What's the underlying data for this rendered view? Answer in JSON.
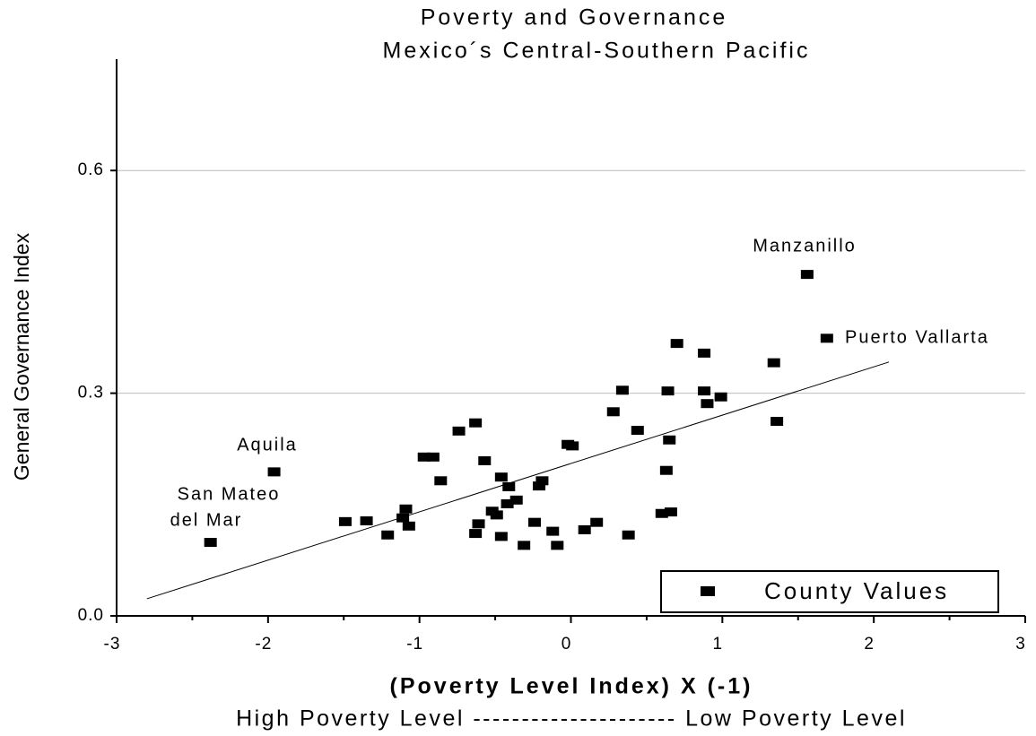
{
  "chart_data": {
    "type": "scatter",
    "title": "Poverty and Governance",
    "subtitle": "Mexico´s Central-Southern Pacific",
    "xlabel": "(Poverty Level Index) X (-1)",
    "xlabel_note": "High Poverty Level --------------------- Low Poverty Level",
    "ylabel": "General Governance Index",
    "xlim": [
      -3,
      3
    ],
    "ylim": [
      0,
      0.75
    ],
    "xticks": [
      -3,
      -2,
      -1,
      0,
      1,
      2,
      3
    ],
    "yticks": [
      {
        "value": 0,
        "label": "0.0"
      },
      0.3,
      0.6
    ],
    "grid": true,
    "legend": "lower right",
    "series": [
      {
        "name": "County Values",
        "color": "#000000",
        "x": [
          1.56,
          1.69,
          -1.96,
          -2.38,
          -1.49,
          -1.35,
          -1.21,
          -1.11,
          -1.09,
          -1.07,
          -0.97,
          -0.91,
          -0.86,
          -0.74,
          -0.63,
          -0.57,
          -0.63,
          -0.61,
          -0.52,
          -0.49,
          -0.46,
          -0.46,
          -0.41,
          -0.42,
          -0.36,
          -0.31,
          -0.24,
          -0.21,
          -0.19,
          -0.12,
          -0.09,
          -0.02,
          0.01,
          0.09,
          0.17,
          0.28,
          0.34,
          0.38,
          0.44,
          0.6,
          0.63,
          0.64,
          0.66,
          0.65,
          0.7,
          0.88,
          0.88,
          0.9,
          0.99,
          1.34,
          1.36
        ],
        "values": [
          0.46,
          0.374,
          0.194,
          0.099,
          0.127,
          0.128,
          0.109,
          0.132,
          0.144,
          0.121,
          0.214,
          0.214,
          0.182,
          0.249,
          0.26,
          0.209,
          0.111,
          0.124,
          0.141,
          0.136,
          0.187,
          0.107,
          0.174,
          0.151,
          0.156,
          0.095,
          0.126,
          0.175,
          0.182,
          0.114,
          0.095,
          0.231,
          0.229,
          0.116,
          0.126,
          0.275,
          0.304,
          0.109,
          0.25,
          0.138,
          0.196,
          0.303,
          0.14,
          0.237,
          0.367,
          0.354,
          0.303,
          0.286,
          0.295,
          0.341,
          0.262
        ]
      }
    ],
    "trendline": {
      "x": [
        -2.8,
        2.1
      ],
      "values": [
        0.023,
        0.342
      ]
    },
    "annotations": [
      "Manzanillo",
      "Puerto Vallarta",
      "Aquila",
      "San Mateo",
      "del Mar"
    ]
  }
}
